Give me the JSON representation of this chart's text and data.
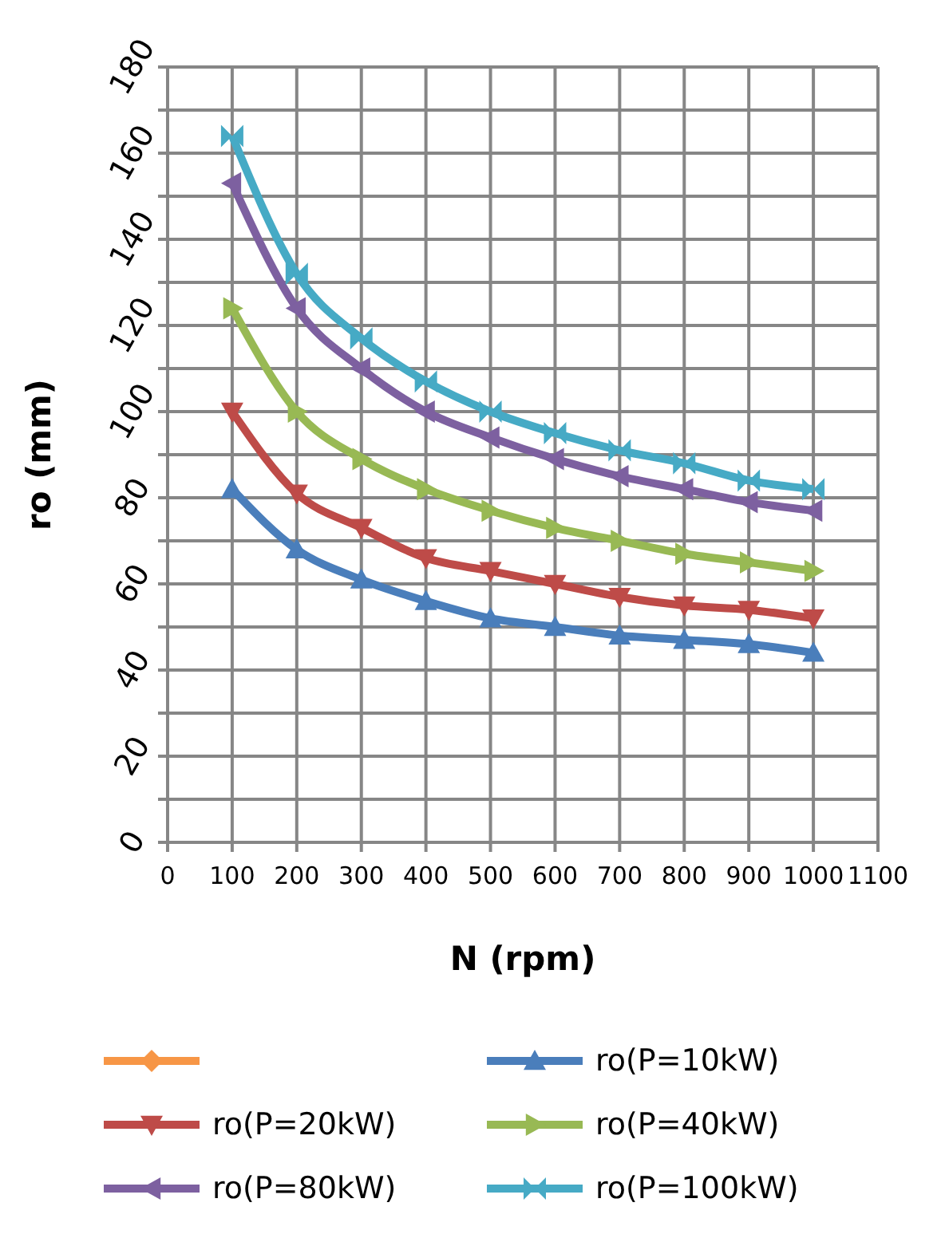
{
  "chart_data": {
    "type": "line",
    "xlabel": "N (rpm)",
    "ylabel": "ro (mm)",
    "x": [
      100,
      200,
      300,
      400,
      500,
      600,
      700,
      800,
      900,
      1000
    ],
    "xlim": [
      0,
      1100
    ],
    "xticks": [
      0,
      100,
      200,
      300,
      400,
      500,
      600,
      700,
      800,
      900,
      1000,
      1100
    ],
    "ylim": [
      0,
      180
    ],
    "yticks": [
      0,
      {
        "value": 10,
        "label": null
      },
      20,
      {
        "value": 30,
        "label": null
      },
      40,
      {
        "value": 50,
        "label": null
      },
      60,
      {
        "value": 70,
        "label": null
      },
      80,
      {
        "value": 90,
        "label": null
      },
      100,
      {
        "value": 110,
        "label": null
      },
      120,
      {
        "value": 130,
        "label": null
      },
      140,
      {
        "value": 150,
        "label": null
      },
      160,
      {
        "value": 170,
        "label": null
      },
      180
    ],
    "grid": true,
    "legend": "bottom",
    "line_style": "solid",
    "series": [
      {
        "color": "#f79646",
        "marker": "diamond",
        "values": [
          null,
          null,
          null,
          null,
          null,
          null,
          null,
          null,
          null,
          null
        ]
      },
      {
        "name": "ro(P=10kW)",
        "color": "#4a7ebb",
        "marker": "triangle",
        "values": [
          82,
          68,
          61,
          56,
          52,
          50,
          48,
          47,
          46,
          44
        ]
      },
      {
        "name": "ro(P=20kW)",
        "color": "#be4b48",
        "marker": "triangle",
        "values": [
          100,
          81,
          73,
          66,
          63,
          60,
          57,
          55,
          54,
          52
        ]
      },
      {
        "name": "ro(P=40kW)",
        "color": "#98b954",
        "marker": "triangle",
        "values": [
          124,
          100,
          89,
          82,
          77,
          73,
          70,
          67,
          65,
          63
        ]
      },
      {
        "name": "ro(P=80kW)",
        "color": "#7d60a0",
        "marker": "triangle",
        "values": [
          153,
          124,
          110,
          100,
          94,
          89,
          85,
          82,
          79,
          77
        ]
      },
      {
        "name": "ro(P=100kW)",
        "color": "#46aac5",
        "marker": "star",
        "values": [
          164,
          132,
          117,
          107,
          100,
          95,
          91,
          88,
          84,
          82
        ]
      }
    ]
  }
}
